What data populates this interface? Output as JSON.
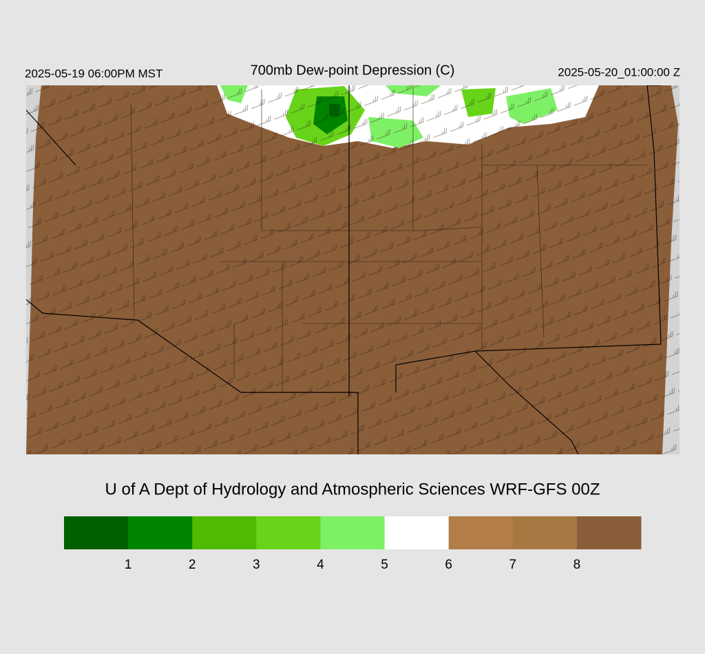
{
  "header": {
    "left": "2025-05-19 06:00PM MST",
    "title": "700mb Dew-point Depression (C)",
    "right": "2025-05-20_01:00:00 Z"
  },
  "credit": "U of A Dept of Hydrology and Atmospheric Sciences WRF-GFS 00Z",
  "colorbar": {
    "colors": [
      "#005f00",
      "#008400",
      "#50ba00",
      "#67d41a",
      "#7ef066",
      "#ffffff",
      "#b27d46",
      "#a67842",
      "#8b5e3a"
    ],
    "ticks": [
      1,
      2,
      3,
      4,
      5,
      6,
      7,
      8
    ]
  }
}
